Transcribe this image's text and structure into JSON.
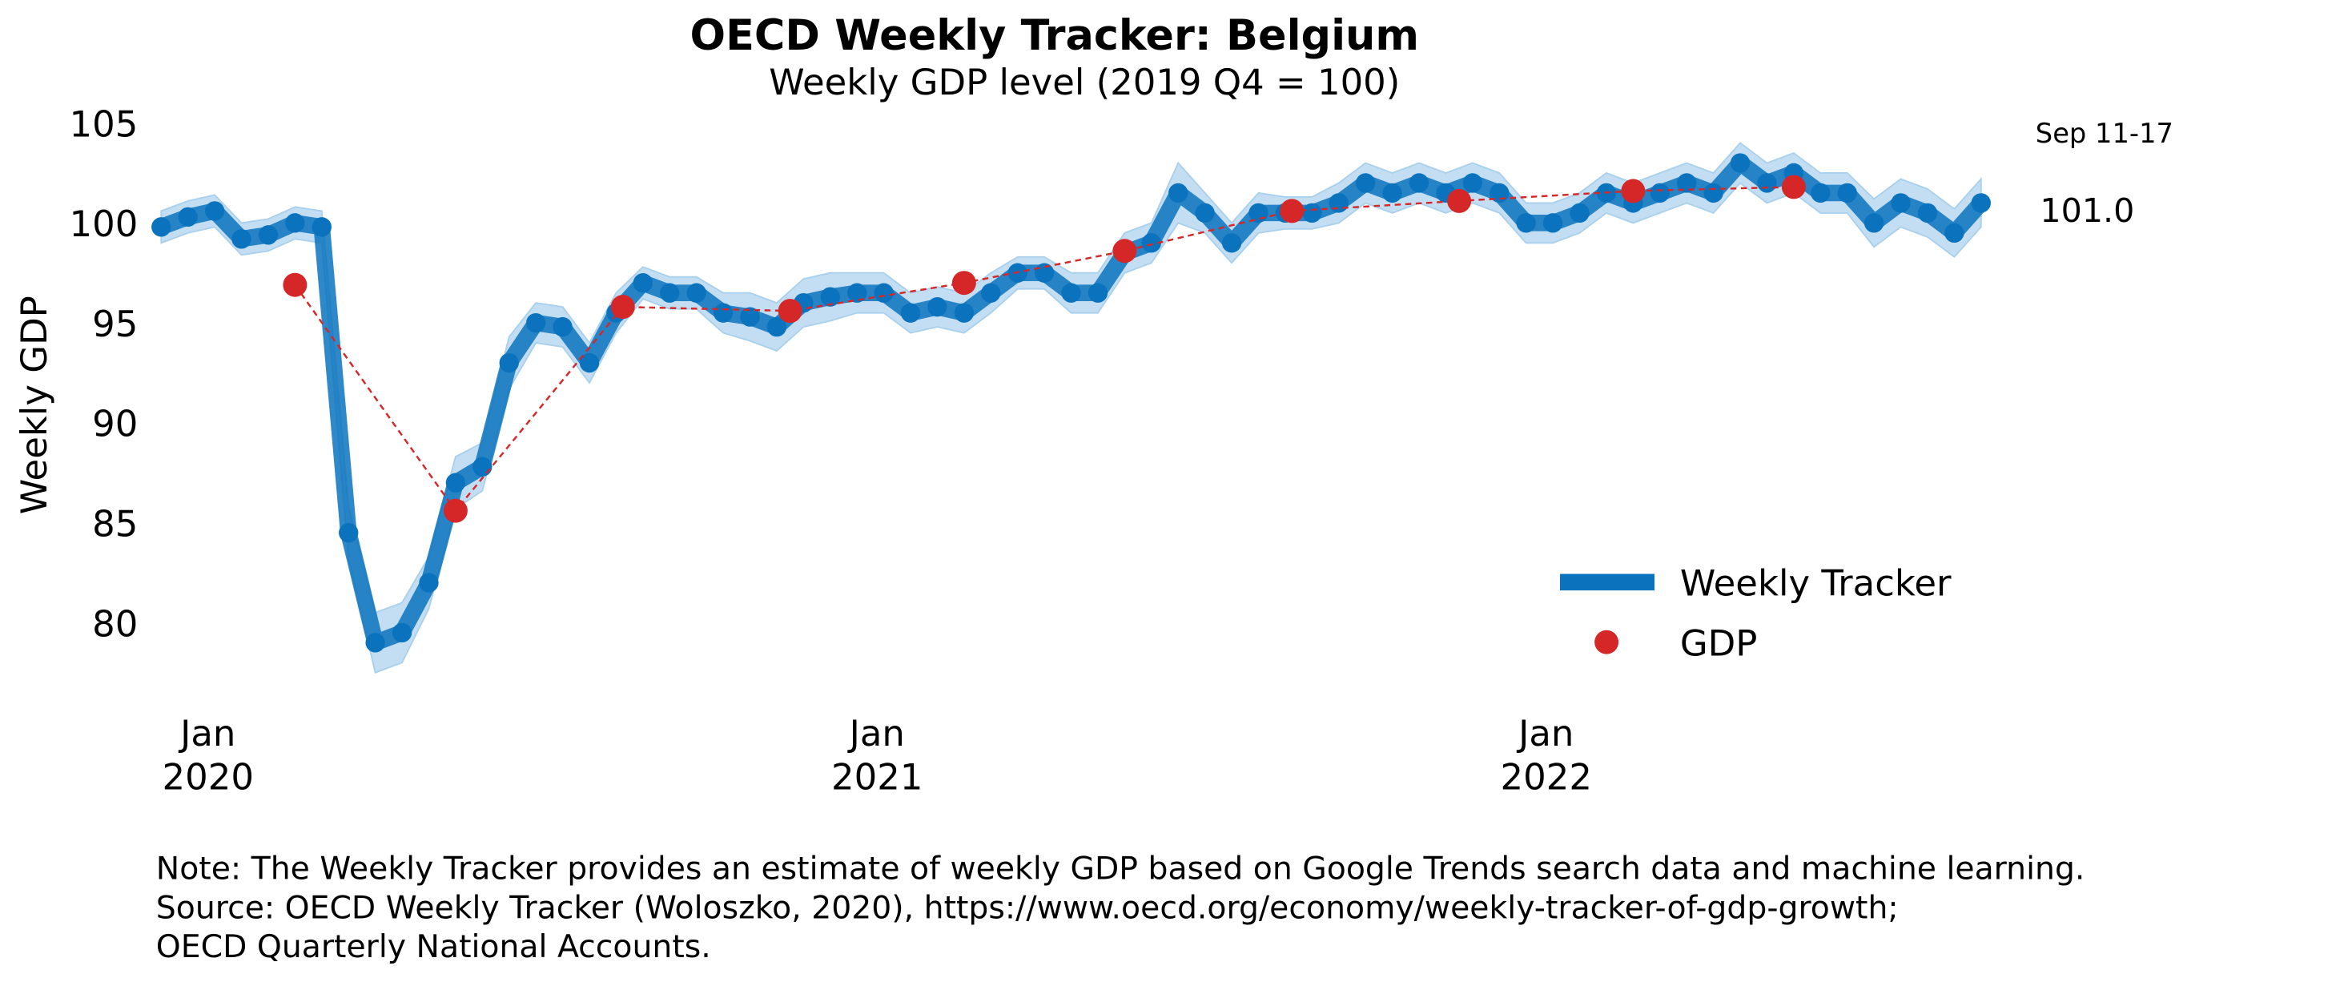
{
  "chart_data": {
    "type": "line",
    "title": "OECD Weekly Tracker: Belgium",
    "subtitle": "Weekly GDP level (2019 Q4 = 100)",
    "y_label": "Weekly GDP",
    "xlim": [
      2019.92,
      2022.7
    ],
    "ylim": [
      77,
      105
    ],
    "yticks": [
      80,
      85,
      90,
      95,
      100,
      105
    ],
    "xticks": [
      {
        "value": 2020,
        "label": "Jan 2020"
      },
      {
        "value": 2021,
        "label": "Jan 2021"
      },
      {
        "value": 2022,
        "label": "Jan 2022"
      }
    ],
    "x": [
      2019.93,
      2019.97,
      2020.01,
      2020.05,
      2020.09,
      2020.13,
      2020.17,
      2020.21,
      2020.25,
      2020.29,
      2020.33,
      2020.37,
      2020.41,
      2020.45,
      2020.49,
      2020.53,
      2020.57,
      2020.61,
      2020.65,
      2020.69,
      2020.73,
      2020.77,
      2020.81,
      2020.85,
      2020.89,
      2020.93,
      2020.97,
      2021.01,
      2021.05,
      2021.09,
      2021.13,
      2021.17,
      2021.21,
      2021.25,
      2021.29,
      2021.33,
      2021.37,
      2021.41,
      2021.45,
      2021.49,
      2021.53,
      2021.57,
      2021.61,
      2021.65,
      2021.69,
      2021.73,
      2021.77,
      2021.81,
      2021.85,
      2021.89,
      2021.93,
      2021.97,
      2022.01,
      2022.05,
      2022.09,
      2022.13,
      2022.17,
      2022.21,
      2022.25,
      2022.29,
      2022.33,
      2022.37,
      2022.41,
      2022.45,
      2022.49,
      2022.53,
      2022.57,
      2022.61,
      2022.65
    ],
    "series": [
      {
        "name": "Weekly Tracker",
        "color": "#0b73bd",
        "values": [
          99.8,
          100.3,
          100.6,
          99.2,
          99.4,
          100.0,
          99.8,
          84.5,
          79.0,
          79.5,
          82.0,
          87.0,
          87.8,
          93.0,
          95.0,
          94.8,
          93.0,
          95.5,
          97.0,
          96.5,
          96.5,
          95.5,
          95.3,
          94.8,
          96.0,
          96.3,
          96.5,
          96.5,
          95.5,
          95.8,
          95.5,
          96.5,
          97.5,
          97.5,
          96.5,
          96.5,
          98.5,
          99.0,
          101.5,
          100.5,
          99.0,
          100.5,
          100.5,
          100.5,
          101.0,
          102.0,
          101.5,
          102.0,
          101.5,
          102.0,
          101.5,
          100.0,
          100.0,
          100.5,
          101.5,
          101.0,
          101.5,
          102.0,
          101.5,
          103.0,
          102.0,
          102.5,
          101.5,
          101.5,
          100.0,
          101.0,
          100.5,
          99.5,
          101.0
        ]
      },
      {
        "name": "GDP",
        "color": "#d62728",
        "x": [
          2020.13,
          2020.37,
          2020.62,
          2020.87,
          2021.13,
          2021.37,
          2021.62,
          2021.87,
          2022.13,
          2022.37
        ],
        "values": [
          96.9,
          85.6,
          95.8,
          95.6,
          97.0,
          98.6,
          100.6,
          101.1,
          101.6,
          101.8
        ]
      }
    ],
    "band": {
      "color": "#a9d0ec",
      "upper": [
        100.6,
        101.1,
        101.4,
        100.0,
        100.2,
        100.8,
        100.6,
        85.8,
        80.5,
        81.0,
        83.3,
        88.3,
        89.0,
        94.3,
        96.0,
        95.8,
        94.0,
        96.5,
        97.8,
        97.3,
        97.3,
        96.5,
        96.5,
        96.0,
        97.2,
        97.5,
        97.5,
        97.5,
        96.5,
        96.8,
        96.5,
        97.5,
        98.3,
        98.3,
        97.5,
        97.5,
        99.5,
        100.0,
        103.0,
        101.5,
        100.0,
        101.5,
        101.3,
        101.3,
        102.0,
        103.0,
        102.5,
        103.0,
        102.5,
        103.0,
        102.5,
        101.0,
        101.0,
        101.5,
        102.5,
        102.0,
        102.5,
        103.0,
        102.5,
        104.0,
        103.0,
        103.5,
        102.5,
        102.5,
        101.2,
        102.2,
        101.7,
        100.7,
        102.2
      ],
      "lower": [
        99.0,
        99.5,
        99.8,
        98.4,
        98.6,
        99.2,
        99.0,
        83.2,
        77.5,
        78.0,
        80.7,
        85.7,
        86.6,
        91.7,
        94.0,
        93.8,
        92.0,
        94.5,
        96.2,
        95.7,
        95.7,
        94.5,
        94.1,
        93.6,
        94.8,
        95.1,
        95.5,
        95.5,
        94.5,
        94.8,
        94.5,
        95.5,
        96.7,
        96.7,
        95.5,
        95.5,
        97.5,
        98.0,
        100.0,
        99.5,
        98.0,
        99.5,
        99.7,
        99.7,
        100.0,
        101.0,
        100.5,
        101.0,
        100.5,
        101.0,
        100.5,
        99.0,
        99.0,
        99.5,
        100.5,
        100.0,
        100.5,
        101.0,
        100.5,
        102.0,
        101.0,
        101.5,
        100.5,
        100.5,
        98.8,
        99.8,
        99.3,
        98.3,
        99.8
      ]
    },
    "annotations": [
      {
        "text": "Sep 11-17"
      },
      {
        "text": "101.0"
      }
    ],
    "legend": "lower right",
    "note": [
      "Note: The Weekly Tracker provides an estimate of weekly GDP based on Google Trends search data and machine learning.",
      "Source: OECD Weekly Tracker (Woloszko, 2020), https://www.oecd.org/economy/weekly-tracker-of-gdp-growth;",
      "OECD Quarterly National Accounts."
    ]
  }
}
